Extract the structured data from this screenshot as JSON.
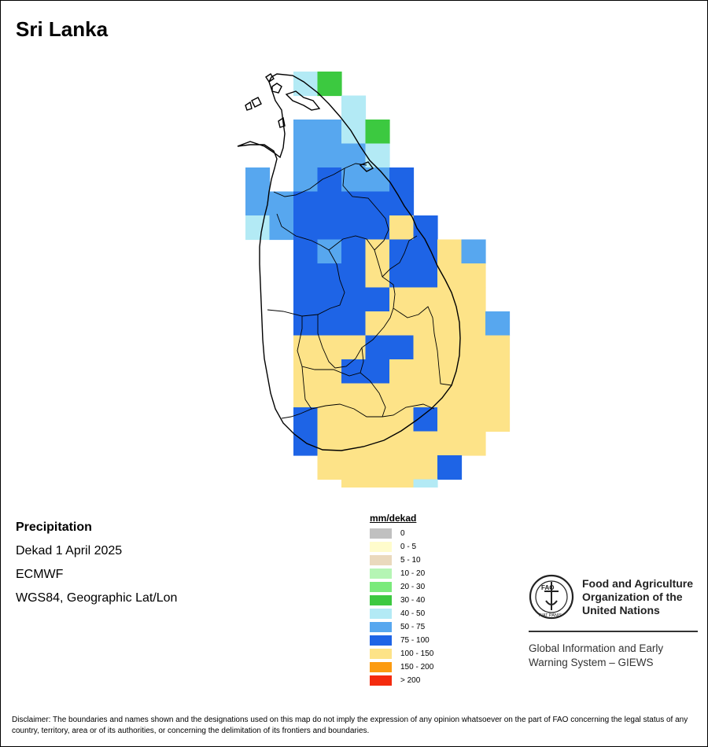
{
  "title": "Sri Lanka",
  "info": {
    "variable": "Precipitation",
    "period": "Dekad 1 April 2025",
    "source": "ECMWF",
    "projection": "WGS84, Geographic Lat/Lon"
  },
  "legend": {
    "title": "mm/dekad",
    "items": [
      {
        "label": "0",
        "color": "#c0c0c0"
      },
      {
        "label": "0 - 5",
        "color": "#fffccc"
      },
      {
        "label": "5 - 10",
        "color": "#ead9bd"
      },
      {
        "label": "10 - 20",
        "color": "#b5f5b4"
      },
      {
        "label": "20 - 30",
        "color": "#7aea7b"
      },
      {
        "label": "30 - 40",
        "color": "#3cc940"
      },
      {
        "label": "40 - 50",
        "color": "#b3eaf5"
      },
      {
        "label": "50 - 75",
        "color": "#57a7ef"
      },
      {
        "label": "75 - 100",
        "color": "#1e64e6"
      },
      {
        "label": "100 - 150",
        "color": "#fde388"
      },
      {
        "label": "150 - 200",
        "color": "#fc9b10"
      },
      {
        "label": "> 200",
        "color": "#f42b0e"
      }
    ]
  },
  "map_grid": {
    "origin_col": 10,
    "origin_row": 3,
    "rows": [
      "..KF......",
      "....K.....",
      "..LLKF....",
      "..LLLK....",
      "L.LDLLD...",
      "LLDDDDD...",
      "KLDDDDYD..",
      "..DLDYDDYL",
      "..DDDYDDYY",
      "..DDDDYYYY",
      "..DDDYYYYYL",
      "..YYYDDYYYY",
      "..YYDDYYYYY",
      "..YYYYYYYYY",
      "..DYYYYDYYY",
      "..DYYYYYYY.",
      "...YYYYYD..",
      "....YYYK.."
    ],
    "codes": {
      "K": "#b3eaf5",
      "L": "#57a7ef",
      "D": "#1e64e6",
      "Y": "#fde388",
      "F": "#3cc940"
    }
  },
  "logo": {
    "org_line1": "Food and Agriculture",
    "org_line2": "Organization of the",
    "org_line3": "United Nations",
    "emblem_text": "FIAT PANIS",
    "emblem_letters": "FAO",
    "giews_line1": "Global Information and Early",
    "giews_line2": "Warning System – GIEWS"
  },
  "disclaimer": "Disclaimer: The boundaries and names shown and the designations used on this map do not imply the expression of any opinion whatsoever on the part of FAO concerning the legal status of any country, territory, area or of its authorities, or concerning the delimitation of its frontiers and boundaries."
}
